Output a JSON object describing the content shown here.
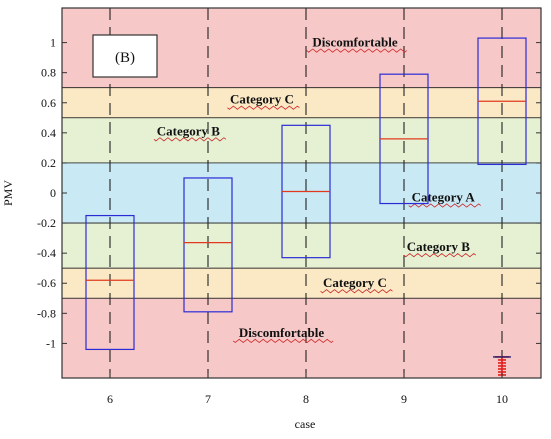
{
  "chart_data": {
    "type": "box",
    "panel_label": "(B)",
    "xlabel": "case",
    "ylabel": "PMV",
    "categories": [
      "6",
      "7",
      "8",
      "9",
      "10"
    ],
    "ylim": [
      -1.23,
      1.23
    ],
    "yticks": [
      -1,
      -0.8,
      -0.6,
      -0.4,
      -0.2,
      0,
      0.2,
      0.4,
      0.6,
      0.8,
      1
    ],
    "ytick_labels": [
      "-1",
      "-0.8",
      "-0.6",
      "-0.4",
      "-0.2",
      "0",
      "0.2",
      "0.4",
      "0.6",
      "0.8",
      "1"
    ],
    "comfort_bands": [
      {
        "from": 0.7,
        "to": 1.23,
        "color": "#f7c8c8"
      },
      {
        "from": 0.5,
        "to": 0.7,
        "color": "#fbe9c6"
      },
      {
        "from": 0.2,
        "to": 0.5,
        "color": "#e6f1d3"
      },
      {
        "from": -0.2,
        "to": 0.2,
        "color": "#c9e9f5"
      },
      {
        "from": -0.5,
        "to": -0.2,
        "color": "#e6f1d3"
      },
      {
        "from": -0.7,
        "to": -0.5,
        "color": "#fbe9c6"
      },
      {
        "from": -1.23,
        "to": -0.7,
        "color": "#f7c8c8"
      }
    ],
    "band_labels": [
      {
        "text": "Discomfortable",
        "x": 8.5,
        "y": 1.0
      },
      {
        "text": "Category C",
        "x": 7.55,
        "y": 0.62
      },
      {
        "text": "Category B",
        "x": 6.8,
        "y": 0.41
      },
      {
        "text": "Category A",
        "x": 9.4,
        "y": -0.03
      },
      {
        "text": "Category B",
        "x": 9.35,
        "y": -0.36
      },
      {
        "text": "Category C",
        "x": 8.5,
        "y": -0.6
      },
      {
        "text": "Discomfortable",
        "x": 7.75,
        "y": -0.93
      }
    ],
    "boxes": [
      {
        "x": "6",
        "q1": -1.04,
        "median": -0.58,
        "q3": -0.15,
        "whisker_low": -1.04,
        "whisker_high": -0.15
      },
      {
        "x": "7",
        "q1": -0.79,
        "median": -0.33,
        "q3": 0.1,
        "whisker_low": -0.79,
        "whisker_high": 0.1
      },
      {
        "x": "8",
        "q1": -0.43,
        "median": 0.01,
        "q3": 0.45,
        "whisker_low": -0.43,
        "whisker_high": 0.45
      },
      {
        "x": "9",
        "q1": -0.07,
        "median": 0.36,
        "q3": 0.79,
        "whisker_low": -0.07,
        "whisker_high": 0.79
      },
      {
        "x": "10",
        "q1": 0.19,
        "median": 0.61,
        "q3": 1.03,
        "whisker_low": 0.19,
        "whisker_high": 1.03
      }
    ],
    "outliers": [
      {
        "x": "10",
        "y": -1.09
      },
      {
        "x": "10",
        "y": -1.11
      },
      {
        "x": "10",
        "y": -1.13
      },
      {
        "x": "10",
        "y": -1.15
      },
      {
        "x": "10",
        "y": -1.17
      },
      {
        "x": "10",
        "y": -1.19
      },
      {
        "x": "10",
        "y": -1.21
      }
    ],
    "colors": {
      "box": "#2b2bd6",
      "median": "#e03a1e",
      "outlier": "#e0201e",
      "case_line": "#222222",
      "frame": "#333333"
    },
    "grid": false,
    "legend": "none"
  }
}
